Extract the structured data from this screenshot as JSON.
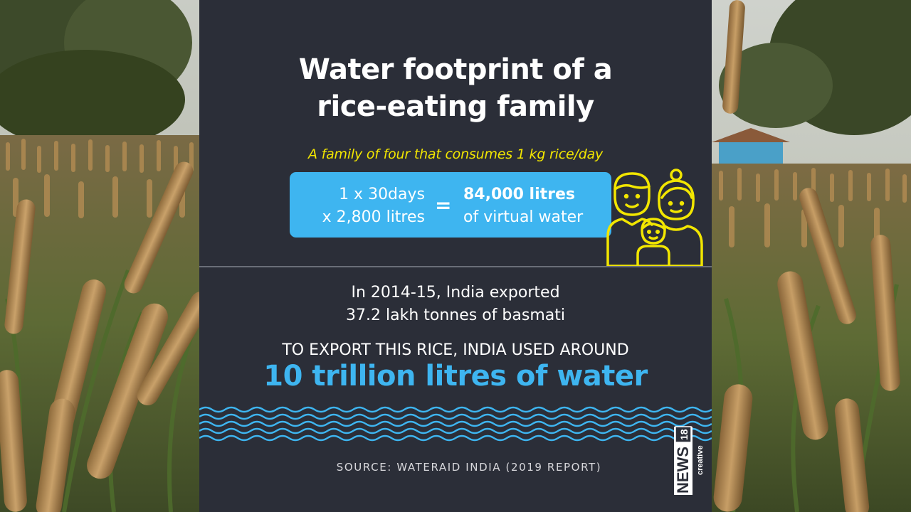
{
  "title_line1": "Water footprint of a",
  "title_line2": "rice-eating family",
  "subtitle": "A family of four that consumes 1 kg rice/day",
  "calculation": {
    "left_line1": "1 x 30days",
    "left_line2": "x 2,800 litres",
    "equals": "=",
    "result_value": "84,000 litres",
    "result_label": "of virtual water"
  },
  "fact_line1": "In 2014-15, India exported",
  "fact_line2": "37.2 lakh tonnes of basmati",
  "export_line": "TO EXPORT THIS RICE, INDIA USED AROUND",
  "big_figure": "10 trillion litres of water",
  "source": "SOURCE: WATERAID INDIA (2019 REPORT)",
  "logo": {
    "main": "NEWS",
    "number": "18",
    "sub": "creative"
  },
  "colors": {
    "panel": "#2b2e38",
    "accent_blue": "#3eb5f0",
    "accent_yellow": "#f2e600"
  },
  "icons": [
    "family-icon",
    "wave-pattern",
    "news18-logo"
  ]
}
